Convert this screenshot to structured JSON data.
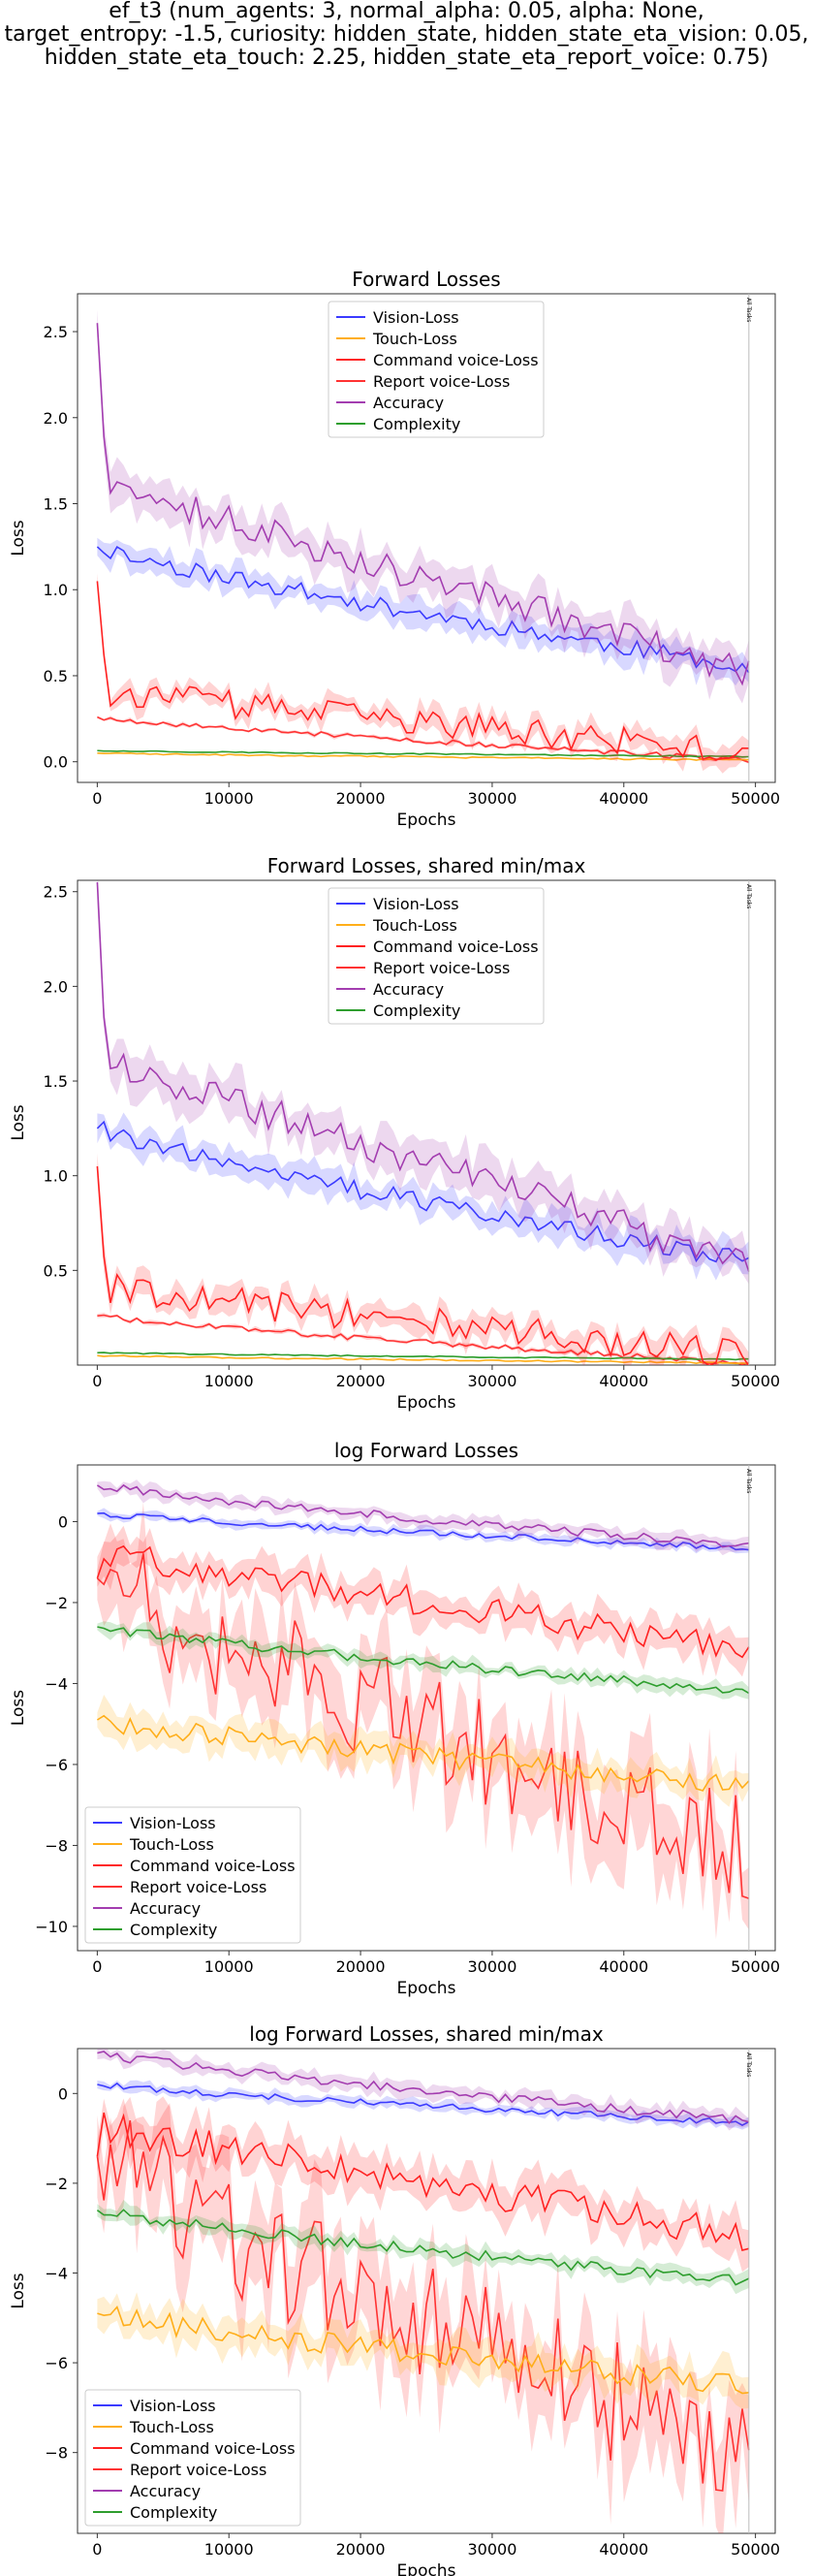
{
  "suptitle": [
    "ef_t3 (num_agents: 3, normal_alpha: 0.05, alpha: None,",
    "target_entropy: -1.5, curiosity: hidden_state, hidden_state_eta_vision: 0.05,",
    "hidden_state_eta_touch: 2.25, hidden_state_eta_report_voice: 0.75)"
  ],
  "colors": {
    "Vision-Loss": "#3b3bff",
    "Touch-Loss": "#ffae1a",
    "Command voice-Loss": "#ff2222",
    "Report voice-Loss": "#ff3333",
    "Accuracy": "#a33db0",
    "Complexity": "#2e9e2e"
  },
  "legend_entries": [
    "Vision-Loss",
    "Touch-Loss",
    "Command voice-Loss",
    "Report voice-Loss",
    "Accuracy",
    "Complexity"
  ],
  "marker_label": "All Tasks",
  "chart_data": [
    {
      "type": "line",
      "title": "Forward Losses",
      "xlabel": "Epochs",
      "ylabel": "Loss",
      "xlim": [
        -1500,
        51500
      ],
      "ylim": [
        -0.12,
        2.72
      ],
      "xticks": [
        0,
        10000,
        20000,
        30000,
        40000,
        50000
      ],
      "yticks": [
        0.0,
        0.5,
        1.0,
        1.5,
        2.0,
        2.5
      ],
      "ytick_labels": [
        "0.0",
        "0.5",
        "1.0",
        "1.5",
        "2.0",
        "2.5"
      ],
      "legend_loc": "upper center",
      "vline": 49500,
      "scale": "linear"
    },
    {
      "type": "line",
      "title": "Forward Losses, shared min/max",
      "xlabel": "Epochs",
      "ylabel": "Loss",
      "xlim": [
        -1500,
        51500
      ],
      "ylim": [
        0.0,
        2.56
      ],
      "xticks": [
        0,
        10000,
        20000,
        30000,
        40000,
        50000
      ],
      "yticks": [
        0.5,
        1.0,
        1.5,
        2.0,
        2.5
      ],
      "ytick_labels": [
        "0.5",
        "1.0",
        "1.5",
        "2.0",
        "2.5"
      ],
      "legend_loc": "upper center",
      "vline": 49500,
      "scale": "linear"
    },
    {
      "type": "line",
      "title": "log Forward Losses",
      "xlabel": "Epochs",
      "ylabel": "Loss",
      "xlim": [
        -1500,
        51500
      ],
      "ylim": [
        -10.6,
        1.4
      ],
      "xticks": [
        0,
        10000,
        20000,
        30000,
        40000,
        50000
      ],
      "yticks": [
        -10,
        -8,
        -6,
        -4,
        -2,
        0
      ],
      "ytick_labels": [
        "−10",
        "−8",
        "−6",
        "−4",
        "−2",
        "0"
      ],
      "legend_loc": "lower left",
      "vline": 49500,
      "scale": "log"
    },
    {
      "type": "line",
      "title": "log Forward Losses, shared min/max",
      "xlabel": "Epochs",
      "ylabel": "Loss",
      "xlim": [
        -1500,
        51500
      ],
      "ylim": [
        -9.8,
        1.0
      ],
      "xticks": [
        0,
        10000,
        20000,
        30000,
        40000,
        50000
      ],
      "yticks": [
        -8,
        -6,
        -4,
        -2,
        0
      ],
      "ytick_labels": [
        "−8",
        "−6",
        "−4",
        "−2",
        "0"
      ],
      "legend_loc": "lower left",
      "vline": 49500,
      "scale": "log"
    }
  ],
  "series": {
    "x_start": 0,
    "x_step": 500,
    "n": 100,
    "linear": {
      "Accuracy": {
        "start": 2.55,
        "drop": [
          1.85,
          1.6
        ],
        "end": 0.52,
        "noise": 0.09,
        "band": 0.1
      },
      "Vision-Loss": {
        "start": 1.25,
        "end": 0.55,
        "noise": 0.05,
        "band": 0.07
      },
      "Command voice-Loss": {
        "start": 1.05,
        "drop": [
          0.6,
          0.4
        ],
        "end": 0.05,
        "noise": 0.08,
        "band": 0.06
      },
      "Report voice-Loss": {
        "start": 0.26,
        "end": 0.01,
        "noise": 0.015,
        "band": 0.01
      },
      "Touch-Loss": {
        "start": 0.05,
        "end": 0.01,
        "noise": 0.004,
        "band": 0.004
      },
      "Complexity": {
        "start": 0.065,
        "end": 0.03,
        "noise": 0.003,
        "band": 0.004
      }
    },
    "log": {
      "Accuracy": {
        "start": 0.9,
        "end": -0.6,
        "noise": 0.1,
        "band": 0.15
      },
      "Vision-Loss": {
        "start": 0.2,
        "end": -0.65,
        "noise": 0.07,
        "band": 0.1
      },
      "Command voice-Loss": {
        "start": -1.4,
        "drop": [
          -0.6,
          -0.8
        ],
        "end": -3.2,
        "noise": 0.35,
        "band": 0.4
      },
      "Report voice-Loss": {
        "start": -1.4,
        "end": -8.0,
        "noise": 1.4,
        "band": 1.0
      },
      "Touch-Loss": {
        "start": -4.9,
        "end": -6.5,
        "noise": 0.25,
        "band": 0.35
      },
      "Complexity": {
        "start": -2.6,
        "end": -4.2,
        "noise": 0.12,
        "band": 0.15
      }
    }
  }
}
